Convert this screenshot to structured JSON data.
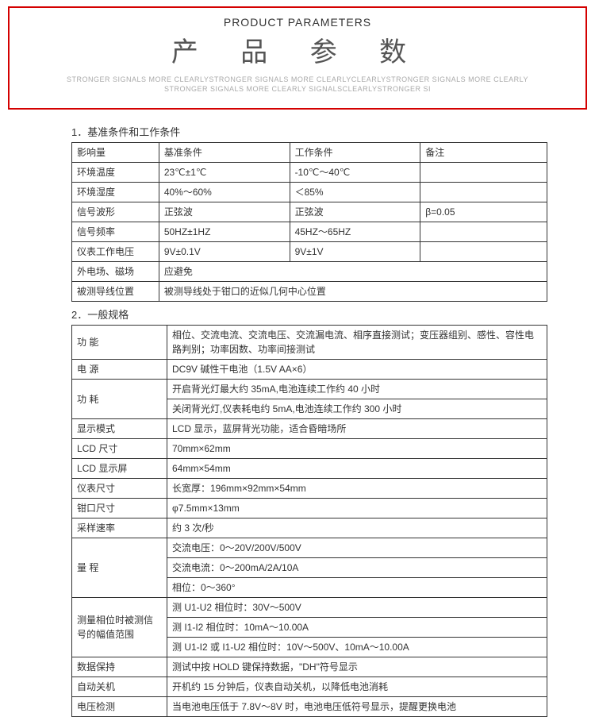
{
  "header": {
    "small": "PRODUCT PARAMETERS",
    "big": "产 品 参 数",
    "sub1": "STRONGER SIGNALS MORE CLEARLYSTRONGER SIGNALS MORE CLEARLYCLEARLYSTRONGER SIGNALS MORE CLEARLY",
    "sub2": "STRONGER SIGNALS MORE CLEARLY SIGNALSCLEARLYSTRONGER SI"
  },
  "section1": {
    "title": "1．基准条件和工作条件",
    "head": [
      "影响量",
      "基准条件",
      "工作条件",
      "备注"
    ],
    "rows": [
      [
        "环境温度",
        "23℃±1℃",
        "-10℃～40℃",
        ""
      ],
      [
        "环境湿度",
        "40%～60%",
        "＜85%",
        ""
      ],
      [
        "信号波形",
        "正弦波",
        "正弦波",
        "β=0.05"
      ],
      [
        "信号频率",
        "50HZ±1HZ",
        "45HZ～65HZ",
        ""
      ],
      [
        "仪表工作电压",
        "9V±0.1V",
        "9V±1V",
        ""
      ]
    ],
    "merged1": [
      "外电场、磁场",
      "应避免"
    ],
    "merged2": [
      "被测导线位置",
      "被测导线处于钳口的近似几何中心位置"
    ]
  },
  "section2": {
    "title": "2．一般规格",
    "rows": [
      {
        "label": "功  能",
        "span": 1,
        "lines": [
          "相位、交流电流、交流电压、交流漏电流、相序直接测试；变压器组别、感性、容性电路判别；功率因数、功率间接测试"
        ]
      },
      {
        "label": "电  源",
        "span": 1,
        "lines": [
          "DC9V 碱性干电池（1.5V AA×6）"
        ]
      },
      {
        "label": "功  耗",
        "span": 2,
        "lines": [
          "开启背光灯最大约 35mA,电池连续工作约 40 小时",
          "关闭背光灯,仪表耗电约 5mA,电池连续工作约 300 小时"
        ]
      },
      {
        "label": "显示模式",
        "span": 1,
        "lines": [
          "LCD 显示，蓝屏背光功能，适合昏暗场所"
        ]
      },
      {
        "label": "LCD 尺寸",
        "span": 1,
        "lines": [
          "70mm×62mm"
        ]
      },
      {
        "label": "LCD 显示屏",
        "span": 1,
        "lines": [
          "64mm×54mm"
        ]
      },
      {
        "label": "仪表尺寸",
        "span": 1,
        "lines": [
          "长宽厚：196mm×92mm×54mm"
        ]
      },
      {
        "label": "钳口尺寸",
        "span": 1,
        "lines": [
          "φ7.5mm×13mm"
        ]
      },
      {
        "label": "采样速率",
        "span": 1,
        "lines": [
          "约 3 次/秒"
        ]
      },
      {
        "label": "量  程",
        "span": 3,
        "lines": [
          "交流电压：0～20V/200V/500V",
          "交流电流：0～200mA/2A/10A",
          "相位：0～360°"
        ]
      },
      {
        "label": "测量相位时被测信号的幅值范围",
        "span": 3,
        "lines": [
          "测 U1-U2 相位时：30V～500V",
          "测 I1-I2 相位时：10mA～10.00A",
          "测 U1-I2 或 I1-U2 相位时：10V～500V、10mA～10.00A"
        ]
      },
      {
        "label": "数据保持",
        "span": 1,
        "lines": [
          "测试中按 HOLD 键保持数据，\"DH\"符号显示"
        ]
      },
      {
        "label": "自动关机",
        "span": 1,
        "lines": [
          "开机约 15 分钟后，仪表自动关机，以降低电池消耗"
        ]
      },
      {
        "label": "电压检测",
        "span": 1,
        "lines": [
          "当电池电压低于 7.8V～8V 时，电池电压低符号显示，提醒更换电池"
        ]
      }
    ]
  },
  "colors": {
    "border": "#d40000",
    "table_border": "#333333",
    "bg": "#ffffff",
    "subtext": "#aaaaaa"
  }
}
